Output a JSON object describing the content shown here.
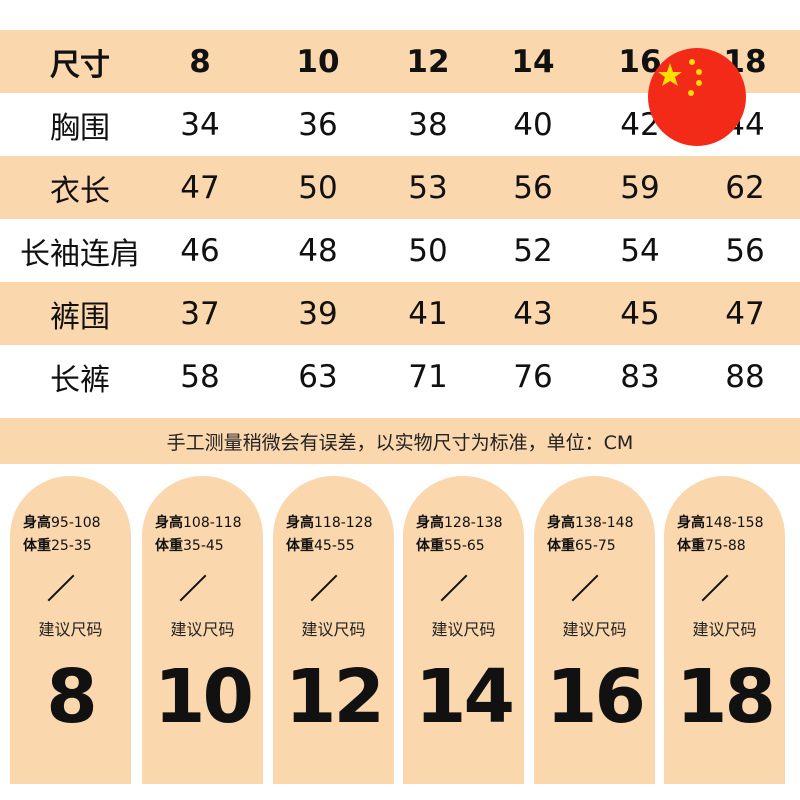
{
  "table": {
    "header": {
      "label": "尺寸",
      "sizes": [
        "8",
        "10",
        "12",
        "14",
        "16",
        "18"
      ]
    },
    "rows": [
      {
        "label": "胸围",
        "values": [
          "34",
          "36",
          "38",
          "40",
          "42",
          "44"
        ]
      },
      {
        "label": "衣长",
        "values": [
          "47",
          "50",
          "53",
          "56",
          "59",
          "62"
        ]
      },
      {
        "label": "长袖连肩",
        "values": [
          "46",
          "48",
          "50",
          "52",
          "54",
          "56"
        ]
      },
      {
        "label": "裤围",
        "values": [
          "37",
          "39",
          "41",
          "43",
          "45",
          "47"
        ]
      },
      {
        "label": "长裤",
        "values": [
          "58",
          "63",
          "71",
          "76",
          "83",
          "88"
        ]
      }
    ]
  },
  "note": "手工测量稍微会有误差，以实物尺寸为标准，单位：CM",
  "cards": [
    {
      "height_label": "身高",
      "height": "95-108",
      "weight_label": "体重",
      "weight": "25-35",
      "suggest": "建议尺码",
      "size": "8"
    },
    {
      "height_label": "身高",
      "height": "108-118",
      "weight_label": "体重",
      "weight": "35-45",
      "suggest": "建议尺码",
      "size": "10"
    },
    {
      "height_label": "身高",
      "height": "118-128",
      "weight_label": "体重",
      "weight": "45-55",
      "suggest": "建议尺码",
      "size": "12"
    },
    {
      "height_label": "身高",
      "height": "128-138",
      "weight_label": "体重",
      "weight": "55-65",
      "suggest": "建议尺码",
      "size": "14"
    },
    {
      "height_label": "身高",
      "height": "138-148",
      "weight_label": "体重",
      "weight": "65-75",
      "suggest": "建议尺码",
      "size": "16"
    },
    {
      "height_label": "身高",
      "height": "148-158",
      "weight_label": "体重",
      "weight": "75-88",
      "suggest": "建议尺码",
      "size": "18"
    }
  ],
  "colors": {
    "peach": "#fad7ad",
    "flag_red": "#f42a18",
    "flag_star": "#ffde00"
  },
  "icons": {
    "flag": "china-flag-icon"
  }
}
